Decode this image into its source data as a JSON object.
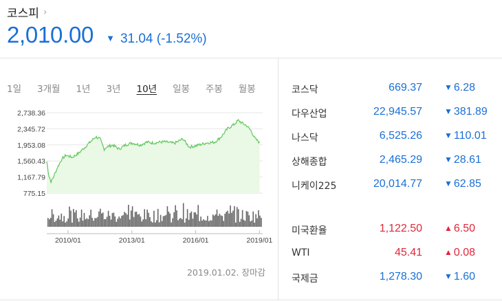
{
  "header": {
    "title": "코스피",
    "chevron": "›",
    "price": "2,010.00",
    "change_arrow": "▼",
    "change": "31.04 (-1.52%)"
  },
  "tabs": [
    {
      "label": "1일"
    },
    {
      "label": "3개월"
    },
    {
      "label": "1년"
    },
    {
      "label": "3년"
    },
    {
      "label": "10년",
      "active": true
    },
    {
      "label": "일봉"
    },
    {
      "label": "주봉"
    },
    {
      "label": "월봉"
    }
  ],
  "as_of": "2019.01.02. 장마감",
  "colors": {
    "down": "#1a6fd6",
    "up": "#e0273a",
    "line": "#5fc85a",
    "area": "#eaf8e6",
    "volume": "#666666"
  },
  "chart_data": {
    "type": "area",
    "ylim": [
      775.15,
      2738.36
    ],
    "y_ticks": [
      "2,738.36",
      "2,345.72",
      "1,953.08",
      "1,560.43",
      "1,167.79",
      "775.15"
    ],
    "x_ticks": [
      "2010/01",
      "2013/01",
      "2016/01",
      "2019/01"
    ],
    "x": [
      2009.0,
      2009.1,
      2009.2,
      2009.3,
      2009.5,
      2009.7,
      2009.9,
      2010.2,
      2010.5,
      2010.8,
      2011.1,
      2011.3,
      2011.5,
      2011.7,
      2011.8,
      2012.1,
      2012.4,
      2012.7,
      2013.0,
      2013.4,
      2013.7,
      2014.0,
      2014.5,
      2015.0,
      2015.4,
      2015.7,
      2016.0,
      2016.5,
      2016.9,
      2017.2,
      2017.5,
      2017.8,
      2018.0,
      2018.2,
      2018.4,
      2018.6,
      2018.8,
      2019.0
    ],
    "values": [
      1550,
      1200,
      1050,
      1150,
      1400,
      1600,
      1700,
      1650,
      1750,
      1900,
      2050,
      2150,
      2100,
      1850,
      1900,
      1950,
      1850,
      1950,
      2000,
      1950,
      2020,
      2000,
      2030,
      1990,
      2100,
      1900,
      1930,
      2000,
      2020,
      2150,
      2350,
      2450,
      2550,
      2480,
      2420,
      2300,
      2100,
      2010
    ]
  },
  "markets": [
    {
      "name": "코스닥",
      "value": "669.37",
      "arrow": "▼",
      "change": "6.28",
      "dir": "down"
    },
    {
      "name": "다우산업",
      "value": "22,945.57",
      "arrow": "▼",
      "change": "381.89",
      "dir": "down"
    },
    {
      "name": "나스닥",
      "value": "6,525.26",
      "arrow": "▼",
      "change": "110.01",
      "dir": "down"
    },
    {
      "name": "상해종합",
      "value": "2,465.29",
      "arrow": "▼",
      "change": "28.61",
      "dir": "down"
    },
    {
      "name": "니케이225",
      "value": "20,014.77",
      "arrow": "▼",
      "change": "62.85",
      "dir": "down"
    }
  ],
  "commodities": [
    {
      "name": "미국환율",
      "value": "1,122.50",
      "arrow": "▲",
      "change": "6.50",
      "dir": "up"
    },
    {
      "name": "WTI",
      "value": "45.41",
      "arrow": "▲",
      "change": "0.08",
      "dir": "up"
    },
    {
      "name": "국제금",
      "value": "1,278.30",
      "arrow": "▼",
      "change": "1.60",
      "dir": "down"
    }
  ]
}
